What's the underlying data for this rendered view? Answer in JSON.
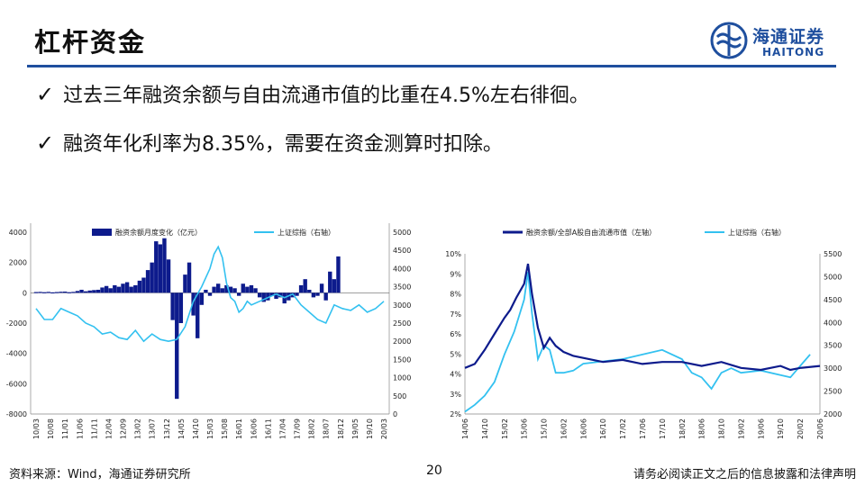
{
  "header": {
    "title": "杠杆资金",
    "logo_cn": "海通证券",
    "logo_en": "HAITONG"
  },
  "bullets": [
    {
      "icon": "check-icon",
      "text": "过去三年融资余额与自由流通市值的比重在4.5%左右徘徊。"
    },
    {
      "icon": "check-icon",
      "text": "融资年化利率为8.35%，需要在资金测算时扣除。"
    }
  ],
  "colors": {
    "navy": "#0d1b8c",
    "cyan": "#33c1f0",
    "brand": "#1f4f9e"
  },
  "footer": {
    "source": "资料来源：Wind，海通证券研究所",
    "page": "20",
    "disclaimer": "请务必阅读正文之后的信息披露和法律声明"
  },
  "chart_data": [
    {
      "type": "bar",
      "legend": [
        "融资余额月度变化（亿元）",
        "上证综指（右轴）"
      ],
      "ylim": [
        -8000,
        4000
      ],
      "y2lim": [
        0,
        5000
      ],
      "yticks": [
        "4000",
        "2000",
        "0",
        "-2000",
        "-4000",
        "-6000",
        "-8000"
      ],
      "y2ticks": [
        "5000",
        "4500",
        "4000",
        "3500",
        "3000",
        "2500",
        "2000",
        "1500",
        "1000",
        "500",
        "0"
      ],
      "xticks": [
        "10/03",
        "10/08",
        "11/01",
        "11/06",
        "11/11",
        "12/04",
        "12/09",
        "13/02",
        "13/07",
        "13/12",
        "14/05",
        "14/10",
        "15/03",
        "15/08",
        "16/01",
        "16/06",
        "16/11",
        "17/04",
        "17/09",
        "18/02",
        "18/07",
        "18/12",
        "19/05",
        "19/10",
        "20/03"
      ],
      "series": [
        {
          "name": "融资余额月度变化（亿元）",
          "kind": "bar",
          "points": [
            [
              0,
              50
            ],
            [
              1,
              60
            ],
            [
              2,
              40
            ],
            [
              3,
              60
            ],
            [
              4,
              30
            ],
            [
              5,
              50
            ],
            [
              6,
              70
            ],
            [
              7,
              80
            ],
            [
              8,
              40
            ],
            [
              9,
              60
            ],
            [
              10,
              120
            ],
            [
              11,
              200
            ],
            [
              12,
              100
            ],
            [
              13,
              150
            ],
            [
              14,
              180
            ],
            [
              15,
              200
            ],
            [
              16,
              350
            ],
            [
              17,
              450
            ],
            [
              18,
              300
            ],
            [
              19,
              500
            ],
            [
              20,
              400
            ],
            [
              21,
              600
            ],
            [
              22,
              700
            ],
            [
              23,
              400
            ],
            [
              24,
              500
            ],
            [
              25,
              800
            ],
            [
              26,
              1000
            ],
            [
              27,
              1500
            ],
            [
              28,
              2000
            ],
            [
              29,
              3400
            ],
            [
              30,
              3200
            ],
            [
              31,
              3600
            ],
            [
              32,
              2200
            ],
            [
              33,
              -1800
            ],
            [
              34,
              -7000
            ],
            [
              35,
              -2000
            ],
            [
              36,
              1200
            ],
            [
              37,
              2000
            ],
            [
              38,
              -1500
            ],
            [
              39,
              -3000
            ],
            [
              40,
              -800
            ],
            [
              41,
              200
            ],
            [
              42,
              -200
            ],
            [
              43,
              400
            ],
            [
              44,
              600
            ],
            [
              45,
              300
            ],
            [
              46,
              500
            ],
            [
              47,
              400
            ],
            [
              48,
              300
            ],
            [
              49,
              -200
            ],
            [
              50,
              600
            ],
            [
              51,
              400
            ],
            [
              52,
              500
            ],
            [
              53,
              300
            ],
            [
              54,
              -300
            ],
            [
              55,
              -600
            ],
            [
              56,
              -500
            ],
            [
              57,
              -200
            ],
            [
              58,
              -400
            ],
            [
              59,
              -300
            ],
            [
              60,
              -700
            ],
            [
              61,
              -500
            ],
            [
              62,
              -300
            ],
            [
              63,
              -200
            ],
            [
              64,
              500
            ],
            [
              65,
              900
            ],
            [
              66,
              200
            ],
            [
              67,
              -300
            ],
            [
              68,
              -200
            ],
            [
              69,
              600
            ],
            [
              70,
              -500
            ],
            [
              71,
              1400
            ],
            [
              72,
              900
            ],
            [
              73,
              2400
            ]
          ]
        },
        {
          "name": "上证综指（右轴）",
          "kind": "line",
          "points": [
            [
              0,
              2900
            ],
            [
              2,
              2600
            ],
            [
              4,
              2600
            ],
            [
              6,
              2900
            ],
            [
              8,
              2800
            ],
            [
              10,
              2700
            ],
            [
              12,
              2500
            ],
            [
              14,
              2400
            ],
            [
              16,
              2200
            ],
            [
              18,
              2250
            ],
            [
              20,
              2100
            ],
            [
              22,
              2050
            ],
            [
              24,
              2300
            ],
            [
              26,
              2000
            ],
            [
              28,
              2200
            ],
            [
              30,
              2050
            ],
            [
              32,
              2000
            ],
            [
              34,
              2050
            ],
            [
              36,
              2400
            ],
            [
              38,
              3100
            ],
            [
              40,
              3500
            ],
            [
              42,
              4000
            ],
            [
              43,
              4400
            ],
            [
              44,
              4600
            ],
            [
              45,
              4300
            ],
            [
              46,
              3600
            ],
            [
              47,
              3200
            ],
            [
              48,
              3100
            ],
            [
              49,
              2800
            ],
            [
              50,
              2900
            ],
            [
              51,
              3100
            ],
            [
              52,
              3000
            ],
            [
              54,
              3100
            ],
            [
              56,
              3200
            ],
            [
              58,
              3300
            ],
            [
              60,
              3200
            ],
            [
              62,
              3300
            ],
            [
              64,
              3000
            ],
            [
              66,
              2800
            ],
            [
              68,
              2600
            ],
            [
              70,
              2500
            ],
            [
              72,
              3000
            ],
            [
              74,
              2900
            ],
            [
              76,
              2850
            ],
            [
              78,
              3000
            ],
            [
              80,
              2800
            ],
            [
              82,
              2900
            ],
            [
              84,
              3100
            ]
          ]
        }
      ]
    },
    {
      "type": "line",
      "legend": [
        "融资余额/全部A股自由流通市值（左轴）",
        "上证综指（右轴）"
      ],
      "ylim": [
        2,
        10
      ],
      "y2lim": [
        2000,
        5500
      ],
      "yticks": [
        "10%",
        "9%",
        "8%",
        "7%",
        "6%",
        "5%",
        "4%",
        "3%",
        "2%"
      ],
      "y2ticks": [
        "5500",
        "5000",
        "4500",
        "4000",
        "3500",
        "3000",
        "2500",
        "2000"
      ],
      "xticks": [
        "14/06",
        "14/10",
        "15/02",
        "15/06",
        "15/10",
        "16/02",
        "16/06",
        "16/10",
        "17/02",
        "17/06",
        "17/10",
        "18/02",
        "18/06",
        "18/10",
        "19/02",
        "19/06",
        "19/10",
        "20/02",
        "20/06"
      ],
      "series": [
        {
          "name": "融资余额/全部A股自由流通市值（左轴）",
          "kind": "line",
          "points": [
            [
              0,
              4.3
            ],
            [
              0.5,
              4.5
            ],
            [
              1,
              5.2
            ],
            [
              1.5,
              6.0
            ],
            [
              2,
              6.8
            ],
            [
              2.3,
              7.2
            ],
            [
              2.6,
              7.8
            ],
            [
              3,
              8.5
            ],
            [
              3.2,
              9.5
            ],
            [
              3.4,
              8.0
            ],
            [
              3.7,
              6.3
            ],
            [
              4,
              5.3
            ],
            [
              4.3,
              5.8
            ],
            [
              4.6,
              5.4
            ],
            [
              5,
              5.1
            ],
            [
              5.5,
              4.9
            ],
            [
              6,
              4.8
            ],
            [
              7,
              4.6
            ],
            [
              8,
              4.7
            ],
            [
              9,
              4.5
            ],
            [
              10,
              4.6
            ],
            [
              11,
              4.6
            ],
            [
              12,
              4.4
            ],
            [
              13,
              4.6
            ],
            [
              14,
              4.3
            ],
            [
              15,
              4.2
            ],
            [
              16,
              4.4
            ],
            [
              16.5,
              4.2
            ],
            [
              17,
              4.3
            ],
            [
              18,
              4.4
            ]
          ]
        },
        {
          "name": "上证综指（右轴）",
          "kind": "line",
          "points": [
            [
              0,
              2050
            ],
            [
              0.5,
              2200
            ],
            [
              1,
              2400
            ],
            [
              1.5,
              2700
            ],
            [
              2,
              3300
            ],
            [
              2.5,
              3800
            ],
            [
              3,
              4500
            ],
            [
              3.2,
              5100
            ],
            [
              3.4,
              4200
            ],
            [
              3.7,
              3200
            ],
            [
              4,
              3500
            ],
            [
              4.3,
              3400
            ],
            [
              4.6,
              2900
            ],
            [
              5,
              2900
            ],
            [
              5.5,
              2950
            ],
            [
              6,
              3100
            ],
            [
              7,
              3150
            ],
            [
              8,
              3200
            ],
            [
              9,
              3300
            ],
            [
              10,
              3400
            ],
            [
              11,
              3200
            ],
            [
              11.5,
              2900
            ],
            [
              12,
              2800
            ],
            [
              12.5,
              2550
            ],
            [
              13,
              2900
            ],
            [
              13.5,
              3000
            ],
            [
              14,
              2900
            ],
            [
              15,
              2950
            ],
            [
              16,
              2850
            ],
            [
              16.5,
              2800
            ],
            [
              17,
              3050
            ],
            [
              17.5,
              3300
            ]
          ]
        }
      ]
    }
  ]
}
